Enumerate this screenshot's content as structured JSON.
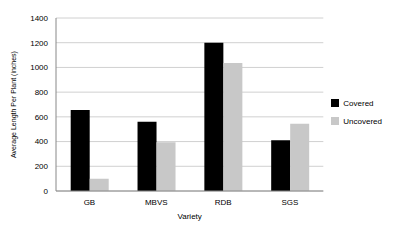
{
  "chart_data": {
    "type": "bar",
    "x_label": "Variety",
    "y_label": "Average Length Per Plant (inches)",
    "categories": [
      "GB",
      "MBVS",
      "RDB",
      "SGS"
    ],
    "series": [
      {
        "name": "Covered",
        "color": "#000000",
        "values": [
          655,
          560,
          1200,
          410
        ]
      },
      {
        "name": "Uncovered",
        "color": "#c8c8c8",
        "values": [
          100,
          395,
          1035,
          545
        ]
      }
    ],
    "ylim": [
      0,
      1400
    ],
    "yticks": [
      0,
      200,
      400,
      600,
      800,
      1000,
      1200,
      1400
    ],
    "grid": true,
    "legend": "right"
  }
}
